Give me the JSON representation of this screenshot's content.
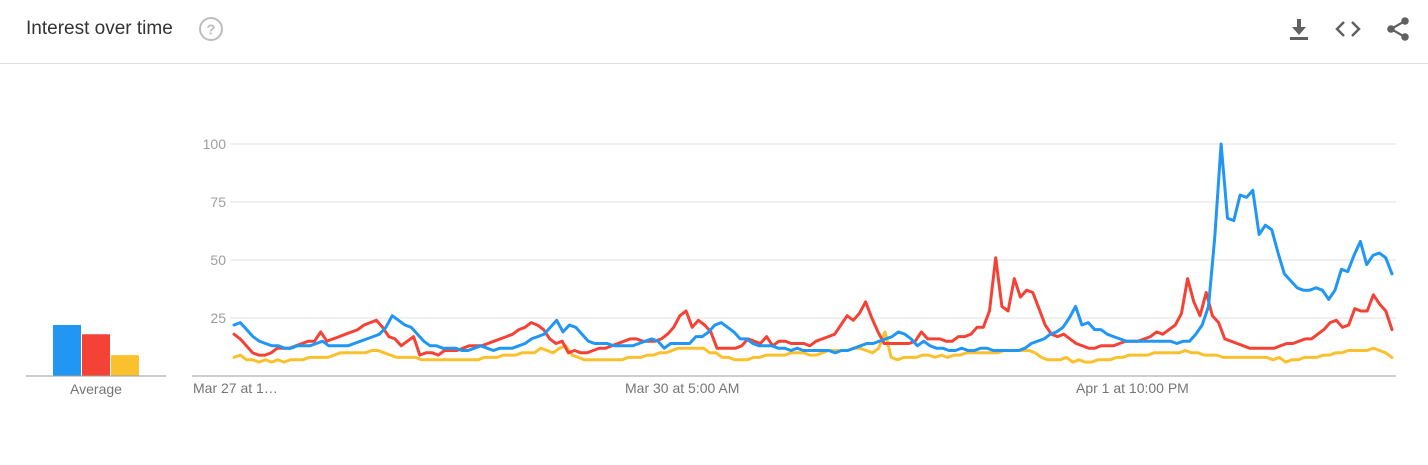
{
  "header": {
    "title": "Interest over time",
    "help_icon": "help-circle-icon",
    "download_icon": "download-icon",
    "embed_icon": "embed-code-icon",
    "share_icon": "share-icon"
  },
  "colors": {
    "series_1": "#2196f3",
    "series_2": "#f44336",
    "series_3": "#fbc02d",
    "grid": "#e0e0e0",
    "axis": "#9e9e9e"
  },
  "chart_data": {
    "type": "line",
    "title": "Interest over time",
    "x_tick_labels": [
      "Mar 27 at 1…",
      "Mar 30 at 5:00 AM",
      "Apr 1 at 10:00 PM"
    ],
    "ylim": [
      0,
      100
    ],
    "y_ticks": [
      25,
      50,
      75,
      100
    ],
    "grid": true,
    "average_label": "Average",
    "averages": [
      22,
      18,
      9
    ],
    "series": [
      {
        "values": [
          22,
          23,
          20,
          17,
          15,
          14,
          13,
          13,
          12,
          12,
          13,
          13,
          13,
          14,
          15,
          13,
          13,
          13,
          13,
          14,
          15,
          16,
          17,
          18,
          21,
          26,
          24,
          22,
          21,
          18,
          15,
          13,
          13,
          12,
          12,
          12,
          11,
          11,
          12,
          13,
          12,
          11,
          12,
          12,
          12,
          13,
          14,
          16,
          17,
          18,
          21,
          24,
          19,
          22,
          21,
          18,
          15,
          14,
          14,
          14,
          13,
          13,
          13,
          13,
          14,
          15,
          16,
          15,
          12,
          14,
          14,
          14,
          14,
          17,
          17,
          19,
          22,
          23,
          21,
          19,
          16,
          16,
          14,
          13,
          13,
          13,
          12,
          12,
          11,
          12,
          11,
          11,
          11,
          11,
          11,
          10,
          11,
          11,
          12,
          13,
          14,
          14,
          15,
          16,
          17,
          19,
          18,
          16,
          13,
          15,
          13,
          12,
          12,
          11,
          11,
          12,
          11,
          11,
          12,
          12,
          11,
          11,
          11,
          11,
          11,
          12,
          14,
          15,
          16,
          18,
          19,
          21,
          25,
          30,
          22,
          23,
          20,
          20,
          18,
          17,
          16,
          15,
          15,
          15,
          15,
          15,
          15,
          15,
          15,
          14,
          15,
          15,
          18,
          22,
          30,
          60,
          100,
          68,
          67,
          78,
          77,
          80,
          61,
          65,
          63,
          53,
          44,
          41,
          38,
          37,
          37,
          38,
          37,
          33,
          37,
          46,
          45,
          52,
          58,
          48,
          52,
          53,
          51,
          44
        ]
      },
      {
        "values": [
          18,
          16,
          13,
          10,
          9,
          9,
          10,
          12,
          12,
          12,
          13,
          14,
          15,
          15,
          19,
          15,
          16,
          17,
          18,
          19,
          20,
          22,
          23,
          24,
          21,
          17,
          16,
          13,
          15,
          17,
          9,
          10,
          10,
          9,
          11,
          11,
          11,
          12,
          13,
          13,
          13,
          14,
          15,
          16,
          17,
          18,
          20,
          21,
          23,
          22,
          20,
          16,
          14,
          15,
          10,
          11,
          10,
          10,
          11,
          12,
          12,
          13,
          14,
          15,
          16,
          16,
          15,
          15,
          15,
          16,
          18,
          21,
          26,
          28,
          21,
          24,
          22,
          19,
          12,
          12,
          12,
          12,
          13,
          16,
          15,
          14,
          17,
          13,
          15,
          15,
          14,
          14,
          14,
          13,
          15,
          16,
          17,
          18,
          22,
          26,
          24,
          27,
          32,
          25,
          19,
          14,
          14,
          14,
          14,
          14,
          15,
          19,
          16,
          16,
          16,
          15,
          15,
          17,
          17,
          18,
          21,
          21,
          28,
          51,
          30,
          28,
          42,
          34,
          37,
          36,
          29,
          22,
          18,
          17,
          18,
          16,
          14,
          13,
          12,
          12,
          13,
          13,
          13,
          14,
          15,
          15,
          15,
          16,
          17,
          19,
          18,
          20,
          22,
          27,
          42,
          32,
          26,
          36,
          26,
          23,
          16,
          15,
          14,
          13,
          12,
          12,
          12,
          12,
          12,
          13,
          14,
          14,
          15,
          16,
          16,
          18,
          20,
          23,
          24,
          21,
          22,
          29,
          28,
          28,
          35,
          31,
          28,
          20
        ]
      },
      {
        "values": [
          8,
          9,
          7,
          7,
          6,
          7,
          6,
          7,
          6,
          7,
          7,
          7,
          8,
          8,
          8,
          8,
          9,
          10,
          10,
          10,
          10,
          10,
          11,
          11,
          10,
          9,
          8,
          8,
          8,
          8,
          7,
          7,
          7,
          7,
          7,
          7,
          7,
          7,
          7,
          7,
          8,
          8,
          8,
          9,
          9,
          9,
          10,
          10,
          10,
          12,
          11,
          10,
          12,
          13,
          9,
          8,
          7,
          7,
          7,
          7,
          7,
          7,
          7,
          8,
          8,
          8,
          9,
          9,
          10,
          10,
          11,
          12,
          12,
          12,
          12,
          12,
          10,
          10,
          8,
          8,
          7,
          7,
          7,
          8,
          8,
          9,
          9,
          9,
          9,
          10,
          10,
          10,
          9,
          9,
          10,
          11,
          11,
          11,
          11,
          12,
          12,
          11,
          10,
          12,
          19,
          8,
          7,
          8,
          8,
          8,
          9,
          9,
          8,
          9,
          8,
          9,
          9,
          10,
          10,
          10,
          10,
          10,
          10,
          11,
          11,
          11,
          11,
          11,
          10,
          8,
          7,
          7,
          7,
          8,
          6,
          7,
          6,
          6,
          7,
          7,
          7,
          8,
          8,
          9,
          9,
          9,
          9,
          10,
          10,
          10,
          10,
          10,
          11,
          10,
          10,
          9,
          9,
          9,
          8,
          8,
          8,
          8,
          8,
          8,
          8,
          8,
          7,
          8,
          6,
          7,
          7,
          8,
          8,
          8,
          9,
          9,
          10,
          10,
          11,
          11,
          11,
          11,
          12,
          11,
          10,
          8
        ]
      }
    ]
  }
}
